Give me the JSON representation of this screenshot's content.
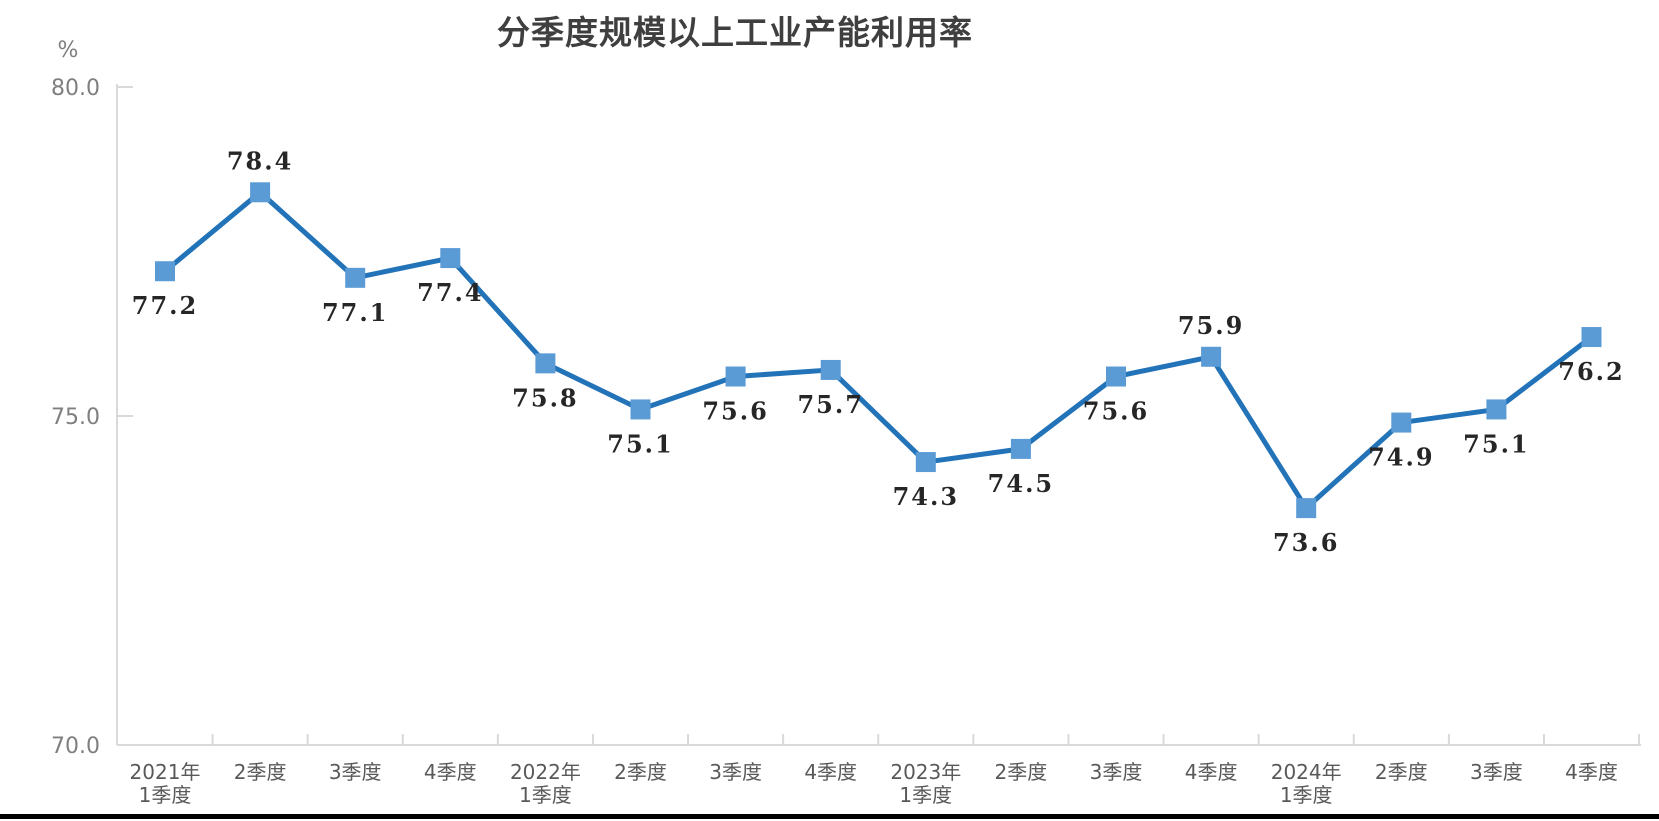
{
  "chart_data": {
    "type": "line",
    "title": "分季度规模以上工业产能利用率",
    "unit_label": "%",
    "categories": [
      [
        "2021年",
        "1季度"
      ],
      [
        "2季度"
      ],
      [
        "3季度"
      ],
      [
        "4季度"
      ],
      [
        "2022年",
        "1季度"
      ],
      [
        "2季度"
      ],
      [
        "3季度"
      ],
      [
        "4季度"
      ],
      [
        "2023年",
        "1季度"
      ],
      [
        "2季度"
      ],
      [
        "3季度"
      ],
      [
        "4季度"
      ],
      [
        "2024年",
        "1季度"
      ],
      [
        "2季度"
      ],
      [
        "3季度"
      ],
      [
        "4季度"
      ]
    ],
    "values": [
      77.2,
      78.4,
      77.1,
      77.4,
      75.8,
      75.1,
      75.6,
      75.7,
      74.3,
      74.5,
      75.6,
      75.9,
      73.6,
      74.9,
      75.1,
      76.2
    ],
    "ylim": [
      70.0,
      80.0
    ],
    "yticks": [
      80.0,
      75.0,
      70.0
    ],
    "ytick_labels": [
      "80.0",
      "75.0",
      "70.0"
    ],
    "grid": false,
    "legend": "none",
    "data_labels_shown": true,
    "label_above_indices": [
      1,
      11
    ],
    "colors": {
      "line": "#2373b9",
      "marker": "#5b9bd5",
      "axis": "#d9d9d9",
      "title_text": "#3f3f3f",
      "data_label_text": "#262626",
      "ytick_text": "#7f7f7f",
      "xtick_text": "#595959",
      "bottom_bar": "#000000",
      "background": "#ffffff"
    }
  }
}
